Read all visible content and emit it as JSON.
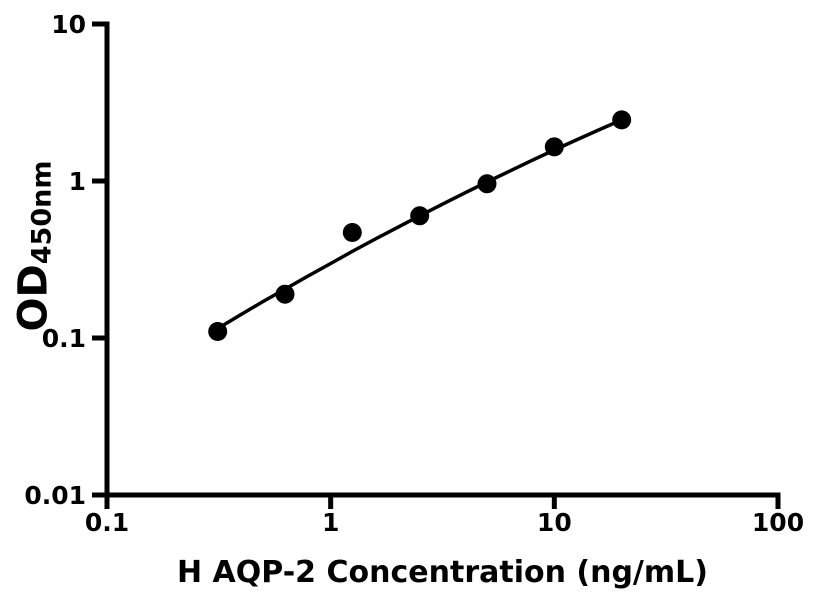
{
  "background_color": "#ffffff",
  "foreground_color": "#000000",
  "chart_data": {
    "type": "scatter",
    "title": "",
    "xlabel": "H AQP-2 Concentration (ng/mL)",
    "ylabel_main": "OD",
    "ylabel_sub": "450nm",
    "x_scale": "log",
    "y_scale": "log",
    "xlim": [
      0.1,
      100
    ],
    "ylim": [
      0.01,
      10
    ],
    "grid": false,
    "legend": "none",
    "x_ticks": [
      {
        "value": 0.1,
        "label": "0.1"
      },
      {
        "value": 1,
        "label": "1"
      },
      {
        "value": 10,
        "label": "10"
      },
      {
        "value": 100,
        "label": "100"
      }
    ],
    "y_ticks": [
      {
        "value": 0.01,
        "label": "0.01"
      },
      {
        "value": 0.1,
        "label": "0.1"
      },
      {
        "value": 1,
        "label": "1"
      },
      {
        "value": 10,
        "label": "10"
      }
    ],
    "points": [
      {
        "x": 0.3125,
        "y": 0.11
      },
      {
        "x": 0.625,
        "y": 0.19
      },
      {
        "x": 1.25,
        "y": 0.47
      },
      {
        "x": 2.5,
        "y": 0.6
      },
      {
        "x": 5,
        "y": 0.96
      },
      {
        "x": 10,
        "y": 1.65
      },
      {
        "x": 20,
        "y": 2.45
      }
    ],
    "fit_curve": [
      [
        0.3125,
        0.115
      ],
      [
        0.4,
        0.142
      ],
      [
        0.5,
        0.171
      ],
      [
        0.625,
        0.205
      ],
      [
        0.8,
        0.25
      ],
      [
        1.0,
        0.298
      ],
      [
        1.25,
        0.356
      ],
      [
        1.6,
        0.43
      ],
      [
        2.0,
        0.508
      ],
      [
        2.5,
        0.6
      ],
      [
        3.2,
        0.718
      ],
      [
        4.0,
        0.842
      ],
      [
        5.0,
        0.985
      ],
      [
        6.3,
        1.155
      ],
      [
        8.0,
        1.358
      ],
      [
        10,
        1.575
      ],
      [
        12.5,
        1.822
      ],
      [
        16,
        2.131
      ],
      [
        20,
        2.449
      ]
    ],
    "marker_color": "#000000",
    "line_color": "#000000",
    "axis_color": "#000000"
  }
}
